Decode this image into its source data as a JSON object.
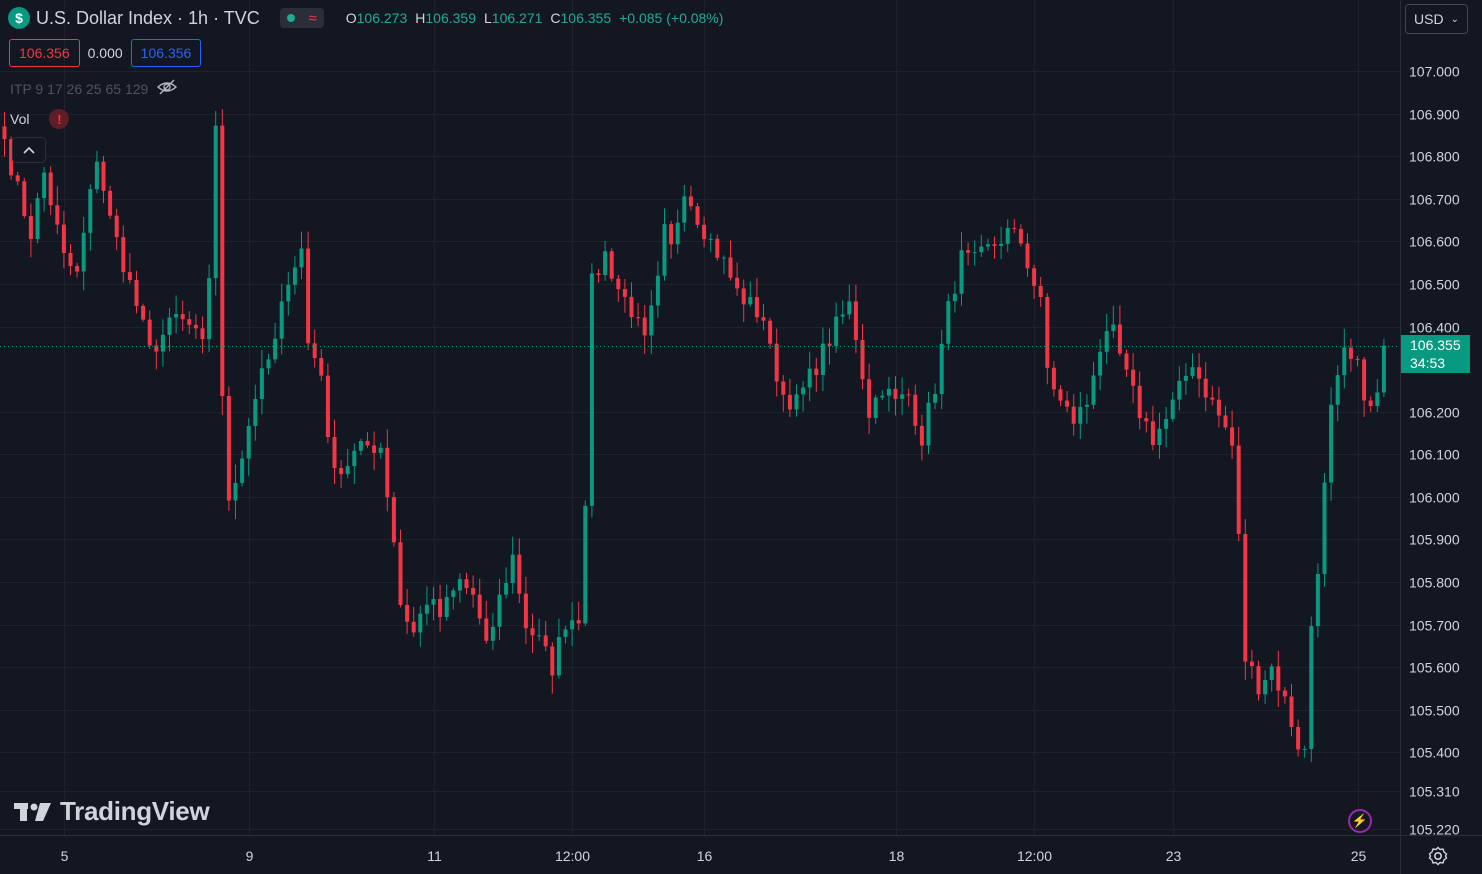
{
  "header": {
    "symbol_icon": "$",
    "title": "U.S. Dollar Index · 1h · TVC",
    "status_icons": [
      "market-open-dot-icon",
      "approx-icon"
    ],
    "ohlc": {
      "o_label": "O",
      "o": "106.273",
      "h_label": "H",
      "h": "106.359",
      "l_label": "L",
      "l": "106.271",
      "c_label": "C",
      "c": "106.355",
      "change": "+0.085 (+0.08%)"
    }
  },
  "quote": {
    "sell": "106.356",
    "spread": "0.000",
    "buy": "106.356"
  },
  "indicators": {
    "itp": "ITP 9 17 26 25 65 129",
    "vol_label": "Vol",
    "warning": "!"
  },
  "currency_select": {
    "value": "USD"
  },
  "last_price": {
    "price": "106.355",
    "countdown": "34:53"
  },
  "watermark": {
    "text": "TradingView"
  },
  "colors": {
    "background": "#131722",
    "up": "#089981",
    "down": "#f23645",
    "grid": "#1e222d",
    "text": "#d1d4dc"
  },
  "chart_data": {
    "type": "candlestick",
    "timeframe": "1h",
    "ylim": [
      105.22,
      107.05
    ],
    "y_ticks": [
      107.0,
      106.9,
      106.8,
      106.7,
      106.6,
      106.5,
      106.4,
      106.2,
      106.1,
      106.0,
      105.9,
      105.8,
      105.7,
      105.6,
      105.5,
      105.4,
      105.31,
      105.22
    ],
    "y_tick_labels": [
      "107.000",
      "106.900",
      "106.800",
      "106.700",
      "106.600",
      "106.500",
      "106.400",
      "106.200",
      "106.100",
      "106.000",
      "105.900",
      "105.800",
      "105.700",
      "105.600",
      "105.500",
      "105.400",
      "105.310",
      "105.220"
    ],
    "x_tick_labels": [
      "5",
      "9",
      "11",
      "12:00",
      "16",
      "18",
      "12:00",
      "23",
      "25"
    ],
    "x_tick_bar_index": [
      9,
      37,
      65,
      86,
      106,
      135,
      156,
      177,
      205
    ],
    "last_close": 106.355,
    "keyframes": [
      [
        0,
        106.84
      ],
      [
        2,
        106.72
      ],
      [
        4,
        106.62
      ],
      [
        6,
        106.76
      ],
      [
        9,
        106.56
      ],
      [
        11,
        106.52
      ],
      [
        14,
        106.8
      ],
      [
        16,
        106.65
      ],
      [
        18,
        106.55
      ],
      [
        20,
        106.45
      ],
      [
        22,
        106.34
      ],
      [
        24,
        106.38
      ],
      [
        26,
        106.42
      ],
      [
        28,
        106.4
      ],
      [
        30,
        106.35
      ],
      [
        31,
        106.52
      ],
      [
        32,
        106.88
      ],
      [
        33,
        106.22
      ],
      [
        34,
        106.0
      ],
      [
        36,
        106.1
      ],
      [
        38,
        106.24
      ],
      [
        41,
        106.36
      ],
      [
        43,
        106.52
      ],
      [
        45,
        106.58
      ],
      [
        46,
        106.36
      ],
      [
        48,
        106.3
      ],
      [
        49,
        106.12
      ],
      [
        51,
        106.06
      ],
      [
        53,
        106.1
      ],
      [
        55,
        106.12
      ],
      [
        57,
        106.12
      ],
      [
        59,
        105.9
      ],
      [
        60,
        105.75
      ],
      [
        62,
        105.68
      ],
      [
        64,
        105.76
      ],
      [
        66,
        105.72
      ],
      [
        69,
        105.8
      ],
      [
        71,
        105.77
      ],
      [
        73,
        105.64
      ],
      [
        75,
        105.76
      ],
      [
        77,
        105.86
      ],
      [
        79,
        105.7
      ],
      [
        81,
        105.66
      ],
      [
        83,
        105.6
      ],
      [
        85,
        105.71
      ],
      [
        87,
        105.72
      ],
      [
        88,
        106.0
      ],
      [
        89,
        106.5
      ],
      [
        91,
        106.57
      ],
      [
        93,
        106.49
      ],
      [
        95,
        106.44
      ],
      [
        97,
        106.36
      ],
      [
        99,
        106.5
      ],
      [
        100,
        106.62
      ],
      [
        101,
        106.58
      ],
      [
        103,
        106.73
      ],
      [
        105,
        106.66
      ],
      [
        107,
        106.6
      ],
      [
        109,
        106.55
      ],
      [
        111,
        106.48
      ],
      [
        113,
        106.45
      ],
      [
        115,
        106.42
      ],
      [
        116,
        106.34
      ],
      [
        118,
        106.24
      ],
      [
        120,
        106.22
      ],
      [
        122,
        106.28
      ],
      [
        124,
        106.34
      ],
      [
        126,
        106.4
      ],
      [
        128,
        106.45
      ],
      [
        129,
        106.38
      ],
      [
        131,
        106.2
      ],
      [
        133,
        106.26
      ],
      [
        135,
        106.22
      ],
      [
        137,
        106.24
      ],
      [
        139,
        106.14
      ],
      [
        141,
        106.26
      ],
      [
        142,
        106.35
      ],
      [
        143,
        106.44
      ],
      [
        145,
        106.56
      ],
      [
        147,
        106.55
      ],
      [
        149,
        106.58
      ],
      [
        152,
        106.62
      ],
      [
        154,
        106.6
      ],
      [
        156,
        106.5
      ],
      [
        157,
        106.45
      ],
      [
        158,
        106.3
      ],
      [
        160,
        106.22
      ],
      [
        162,
        106.18
      ],
      [
        164,
        106.22
      ],
      [
        165,
        106.3
      ],
      [
        166,
        106.35
      ],
      [
        168,
        106.38
      ],
      [
        170,
        106.28
      ],
      [
        172,
        106.2
      ],
      [
        174,
        106.14
      ],
      [
        176,
        106.18
      ],
      [
        178,
        106.25
      ],
      [
        180,
        106.32
      ],
      [
        181,
        106.28
      ],
      [
        183,
        106.22
      ],
      [
        185,
        106.16
      ],
      [
        186,
        106.12
      ],
      [
        187,
        105.9
      ],
      [
        188,
        105.62
      ],
      [
        190,
        105.56
      ],
      [
        192,
        105.6
      ],
      [
        194,
        105.52
      ],
      [
        196,
        105.42
      ],
      [
        197,
        105.4
      ],
      [
        198,
        105.7
      ],
      [
        199,
        105.84
      ],
      [
        200,
        106.02
      ],
      [
        201,
        106.2
      ],
      [
        203,
        106.33
      ],
      [
        205,
        106.3
      ],
      [
        207,
        106.2
      ],
      [
        208,
        106.24
      ],
      [
        209,
        106.36
      ]
    ]
  }
}
